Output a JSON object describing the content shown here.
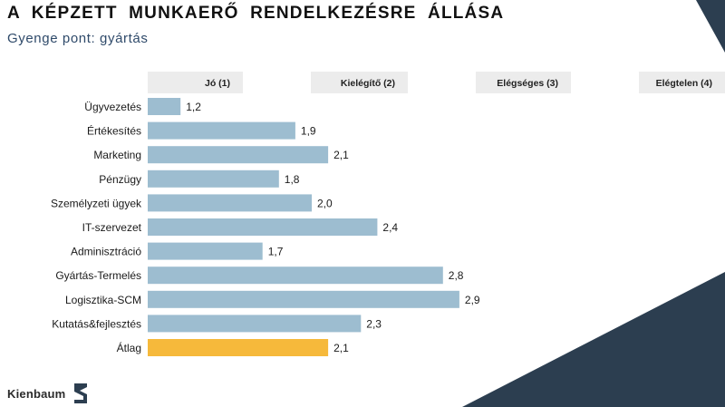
{
  "header": {
    "title": "A KÉPZETT MUNKAERŐ RENDELKEZÉSRE ÁLLÁSA",
    "subtitle": "Gyenge pont: gyártás"
  },
  "footer": {
    "brand": "Kienbaum"
  },
  "colors": {
    "bar": "#9dbdd0",
    "highlight": "#f6b93b",
    "header_band": "#ececec",
    "navy": "#2c3e50"
  },
  "chart_data": {
    "type": "bar",
    "orientation": "horizontal",
    "scale_labels": [
      "Jó (1)",
      "Kielégítő (2)",
      "Elégséges (3)",
      "Elégtelen (4)"
    ],
    "categories": [
      "Ügyvezetés",
      "Értékesítés",
      "Marketing",
      "Pénzügy",
      "Személyzeti ügyek",
      "IT-szervezet",
      "Adminisztráció",
      "Gyártás-Termelés",
      "Logisztika-SCM",
      "Kutatás&fejlesztés",
      "Átlag"
    ],
    "values": [
      1.2,
      1.9,
      2.1,
      1.8,
      2.0,
      2.4,
      1.7,
      2.8,
      2.9,
      2.3,
      2.1
    ],
    "value_labels": [
      "1,2",
      "1,9",
      "2,1",
      "1,8",
      "2,0",
      "2,4",
      "1,7",
      "2,8",
      "2,9",
      "2,3",
      "2,1"
    ],
    "highlight_category": "Átlag",
    "xlim": [
      1,
      4
    ]
  }
}
